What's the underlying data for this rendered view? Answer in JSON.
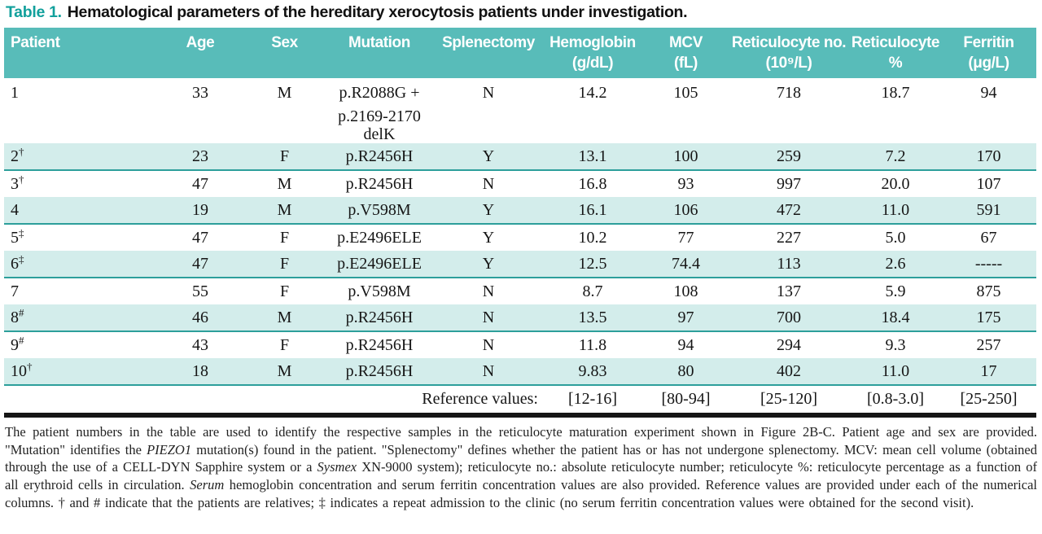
{
  "accent": {
    "header_teal": "#58bcb9",
    "row_teal": "#d3edeb",
    "row_border_teal": "#2d9f9b",
    "title_teal": "#12a09c",
    "rule_black": "#151515"
  },
  "title": {
    "label": "Table 1.",
    "text": "Hematological parameters of the hereditary xerocytosis patients under investigation."
  },
  "table": {
    "columns": [
      {
        "key": "patient",
        "line1": "Patient",
        "line2": ""
      },
      {
        "key": "age",
        "line1": "Age",
        "line2": ""
      },
      {
        "key": "sex",
        "line1": "Sex",
        "line2": ""
      },
      {
        "key": "mutation",
        "line1": "Mutation",
        "line2": ""
      },
      {
        "key": "splenectomy",
        "line1": "Splenectomy",
        "line2": ""
      },
      {
        "key": "hemoglobin",
        "line1": "Hemoglobin",
        "line2": "(g/dL)"
      },
      {
        "key": "mcv",
        "line1": "MCV",
        "line2": "(fL)"
      },
      {
        "key": "retic_no",
        "line1": "Reticulocyte no.",
        "line2": "(10⁹/L)"
      },
      {
        "key": "retic_pct",
        "line1": "Reticulocyte",
        "line2": "%"
      },
      {
        "key": "ferritin",
        "line1": "Ferritin",
        "line2": "(μg/L)"
      }
    ],
    "rows": [
      {
        "patient": "1",
        "sup": "",
        "age": "33",
        "sex": "M",
        "mutation": "p.R2088G +",
        "mutation2": "p.2169-2170 delK",
        "splenectomy": "N",
        "hemoglobin": "14.2",
        "mcv": "105",
        "retic_no": "718",
        "retic_pct": "18.7",
        "ferritin": "94",
        "shaded": false
      },
      {
        "patient": "2",
        "sup": "†",
        "age": "23",
        "sex": "F",
        "mutation": "p.R2456H",
        "mutation2": "",
        "splenectomy": "Y",
        "hemoglobin": "13.1",
        "mcv": "100",
        "retic_no": "259",
        "retic_pct": "7.2",
        "ferritin": "170",
        "shaded": true
      },
      {
        "patient": "3",
        "sup": "†",
        "age": "47",
        "sex": "M",
        "mutation": "p.R2456H",
        "mutation2": "",
        "splenectomy": "N",
        "hemoglobin": "16.8",
        "mcv": "93",
        "retic_no": "997",
        "retic_pct": "20.0",
        "ferritin": "107",
        "shaded": false
      },
      {
        "patient": "4",
        "sup": "",
        "age": "19",
        "sex": "M",
        "mutation": "p.V598M",
        "mutation2": "",
        "splenectomy": "Y",
        "hemoglobin": "16.1",
        "mcv": "106",
        "retic_no": "472",
        "retic_pct": "11.0",
        "ferritin": "591",
        "shaded": true
      },
      {
        "patient": "5",
        "sup": "‡",
        "age": "47",
        "sex": "F",
        "mutation": "p.E2496ELE",
        "mutation2": "",
        "splenectomy": "Y",
        "hemoglobin": "10.2",
        "mcv": "77",
        "retic_no": "227",
        "retic_pct": "5.0",
        "ferritin": "67",
        "shaded": false
      },
      {
        "patient": "6",
        "sup": "‡",
        "age": "47",
        "sex": "F",
        "mutation": "p.E2496ELE",
        "mutation2": "",
        "splenectomy": "Y",
        "hemoglobin": "12.5",
        "mcv": "74.4",
        "retic_no": "113",
        "retic_pct": "2.6",
        "ferritin": "-----",
        "shaded": true
      },
      {
        "patient": "7",
        "sup": "",
        "age": "55",
        "sex": "F",
        "mutation": "p.V598M",
        "mutation2": "",
        "splenectomy": "N",
        "hemoglobin": "8.7",
        "mcv": "108",
        "retic_no": "137",
        "retic_pct": "5.9",
        "ferritin": "875",
        "shaded": false
      },
      {
        "patient": "8",
        "sup": "#",
        "age": "46",
        "sex": "M",
        "mutation": "p.R2456H",
        "mutation2": "",
        "splenectomy": "N",
        "hemoglobin": "13.5",
        "mcv": "97",
        "retic_no": "700",
        "retic_pct": "18.4",
        "ferritin": "175",
        "shaded": true
      },
      {
        "patient": "9",
        "sup": "#",
        "age": "43",
        "sex": "F",
        "mutation": "p.R2456H",
        "mutation2": "",
        "splenectomy": "N",
        "hemoglobin": "11.8",
        "mcv": "94",
        "retic_no": "294",
        "retic_pct": "9.3",
        "ferritin": "257",
        "shaded": false
      },
      {
        "patient": "10",
        "sup": "†",
        "age": "18",
        "sex": "M",
        "mutation": "p.R2456H",
        "mutation2": "",
        "splenectomy": "N",
        "hemoglobin": "9.83",
        "mcv": "80",
        "retic_no": "402",
        "retic_pct": "11.0",
        "ferritin": "17",
        "shaded": true
      }
    ],
    "reference": {
      "label": "Reference values:",
      "hemoglobin": "[12-16]",
      "mcv": "[80-94]",
      "retic_no": "[25-120]",
      "retic_pct": "[0.8-3.0]",
      "ferritin": "[25-250]"
    }
  },
  "footnote": {
    "segments": [
      {
        "text": "The patient numbers in the table are used to identify the respective samples in the reticulocyte maturation experiment shown in Figure 2B-C. Patient age and sex are provided. \"Mutation\" identifies the ",
        "italic": false
      },
      {
        "text": "PIEZO1",
        "italic": true
      },
      {
        "text": " mutation(s) found in the patient. \"Splenectomy\" defines whether the patient has or has not undergone splenectomy.  MCV: mean cell volume (obtained through the use of a CELL-DYN Sapphire system or a ",
        "italic": false
      },
      {
        "text": "Sysmex",
        "italic": true
      },
      {
        "text": " XN-9000 system); reticulocyte no.: absolute reticulocyte number; reticulocyte %: reticulocyte percentage as a function of all erythroid cells in circulation.  ",
        "italic": false
      },
      {
        "text": "Serum",
        "italic": true
      },
      {
        "text": " hemoglobin concentration and serum ferritin concentration values are also provided. Reference values are provided under each of the numerical columns. † and # indicate that the patients are relatives; ‡ indicates a repeat admission to the clinic (no serum ferritin concentration values were obtained for the second visit).",
        "italic": false
      }
    ]
  }
}
